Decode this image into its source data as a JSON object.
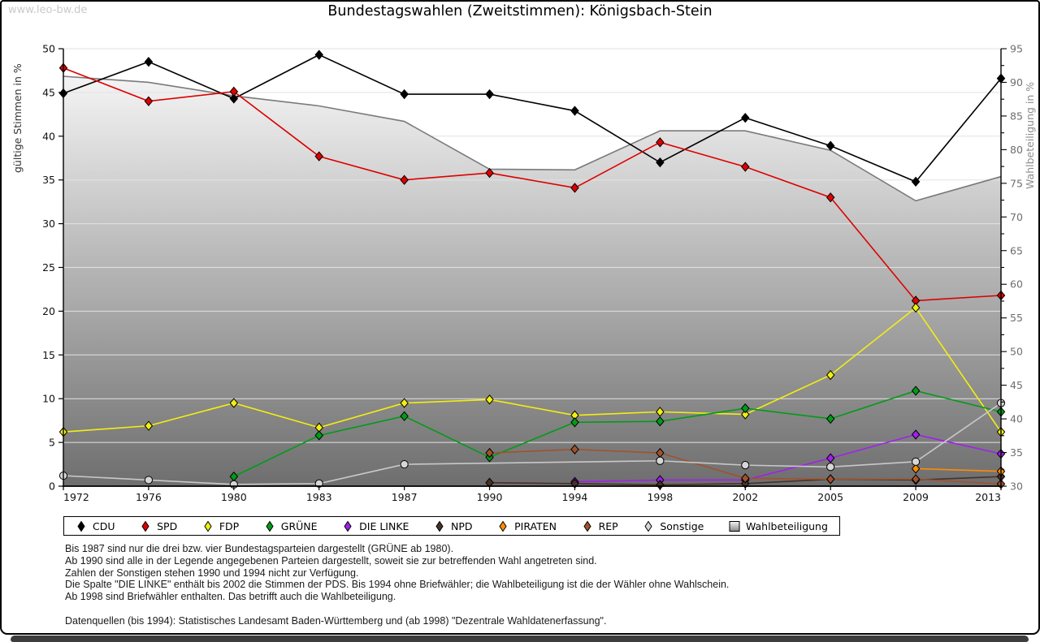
{
  "page": {
    "watermark": "www.leo-bw.de",
    "title": "Bundestagswahlen (Zweitstimmen): Königsbach-Stein"
  },
  "chart_data": {
    "type": "line",
    "title": "Bundestagswahlen (Zweitstimmen): Königsbach-Stein",
    "categories": [
      "1972",
      "1976",
      "1980",
      "1983",
      "1987",
      "1990",
      "1994",
      "1998",
      "2002",
      "2005",
      "2009",
      "2013"
    ],
    "left_axis": {
      "label": "gültige Stimmen in %",
      "min": 0,
      "max": 50,
      "tick_step": 5
    },
    "right_axis": {
      "label": "Wahlbeteiligung in %",
      "min": 30,
      "max": 95,
      "tick_step": 5,
      "minor_step": 2.5
    },
    "grid": true,
    "legend_position": "bottom",
    "series": [
      {
        "name": "CDU",
        "color": "#000000",
        "marker": "diamond",
        "axis": "left",
        "type": "line",
        "values": [
          44.9,
          48.5,
          44.3,
          49.3,
          44.8,
          44.8,
          42.9,
          37.0,
          42.1,
          38.9,
          34.8,
          46.6
        ]
      },
      {
        "name": "SPD",
        "color": "#dd0000",
        "marker": "diamond",
        "axis": "left",
        "type": "line",
        "values": [
          47.8,
          44.0,
          45.1,
          37.7,
          35.0,
          35.8,
          34.1,
          39.3,
          36.5,
          33.0,
          21.2,
          21.8
        ]
      },
      {
        "name": "FDP",
        "color": "#f2ef10",
        "marker": "diamond",
        "axis": "left",
        "type": "line",
        "values": [
          6.2,
          6.9,
          9.5,
          6.7,
          9.5,
          9.9,
          8.1,
          8.5,
          8.2,
          12.7,
          20.4,
          6.2
        ]
      },
      {
        "name": "GRÜNE",
        "color": "#009b18",
        "marker": "diamond",
        "axis": "left",
        "type": "line",
        "values": [
          null,
          null,
          1.1,
          5.8,
          8.0,
          3.3,
          7.3,
          7.4,
          8.9,
          7.7,
          10.9,
          8.5
        ]
      },
      {
        "name": "DIE LINKE",
        "color": "#a020f0",
        "marker": "diamond",
        "axis": "left",
        "type": "line",
        "values": [
          null,
          null,
          null,
          null,
          null,
          null,
          0.5,
          0.7,
          0.7,
          3.2,
          5.9,
          3.7
        ]
      },
      {
        "name": "NPD",
        "color": "#483227",
        "marker": "diamond",
        "axis": "left",
        "type": "line",
        "values": [
          null,
          null,
          null,
          null,
          null,
          0.4,
          0.3,
          0.15,
          0.3,
          0.8,
          0.7,
          1.1
        ]
      },
      {
        "name": "PIRATEN",
        "color": "#ff8c00",
        "marker": "diamond",
        "axis": "left",
        "type": "line",
        "values": [
          null,
          null,
          null,
          null,
          null,
          null,
          null,
          null,
          null,
          null,
          2.0,
          1.7
        ]
      },
      {
        "name": "REP",
        "color": "#a0522d",
        "marker": "diamond",
        "axis": "left",
        "type": "line",
        "values": [
          null,
          null,
          null,
          null,
          null,
          3.8,
          4.2,
          3.8,
          0.9,
          0.8,
          0.8,
          0.25
        ]
      },
      {
        "name": "Sonstige",
        "color": "#c8c8c8",
        "marker": "circle",
        "axis": "left",
        "type": "line",
        "values": [
          1.2,
          0.7,
          0.2,
          0.3,
          2.5,
          null,
          null,
          2.9,
          2.4,
          2.2,
          2.8,
          9.5
        ]
      },
      {
        "name": "Wahlbeteiligung",
        "color": "#7a7a7a",
        "marker": "square-gradient",
        "axis": "right",
        "type": "area",
        "values": [
          90.9,
          90.0,
          88.0,
          86.5,
          84.2,
          77.1,
          77.0,
          82.8,
          82.8,
          79.9,
          72.4,
          76.0
        ]
      }
    ],
    "area_gradient": {
      "top": "#fdfdfd",
      "bottom": "#6e6e6e"
    },
    "grid_color": "#e2e2e2"
  },
  "footnotes": {
    "lines": [
      "Bis 1987 sind nur die drei bzw. vier Bundestagsparteien dargestellt (GRÜNE ab 1980).",
      "Ab 1990 sind alle in der Legende angegebenen Parteien dargestellt, soweit sie zur betreffenden Wahl angetreten sind.",
      "Zahlen der Sonstigen stehen 1990 und 1994 nicht zur Verfügung.",
      "Die Spalte \"DIE LINKE\" enthält bis 2002 die Stimmen der PDS. Bis 1994 ohne Briefwähler; die Wahlbeteiligung ist die der Wähler ohne Wahlschein.",
      "Ab 1998 sind Briefwähler enthalten. Das betrifft auch die Wahlbeteiligung."
    ],
    "source": "Datenquellen (bis 1994): Statistisches Landesamt Baden-Württemberg und (ab 1998) \"Dezentrale Wahldatenerfassung\"."
  }
}
